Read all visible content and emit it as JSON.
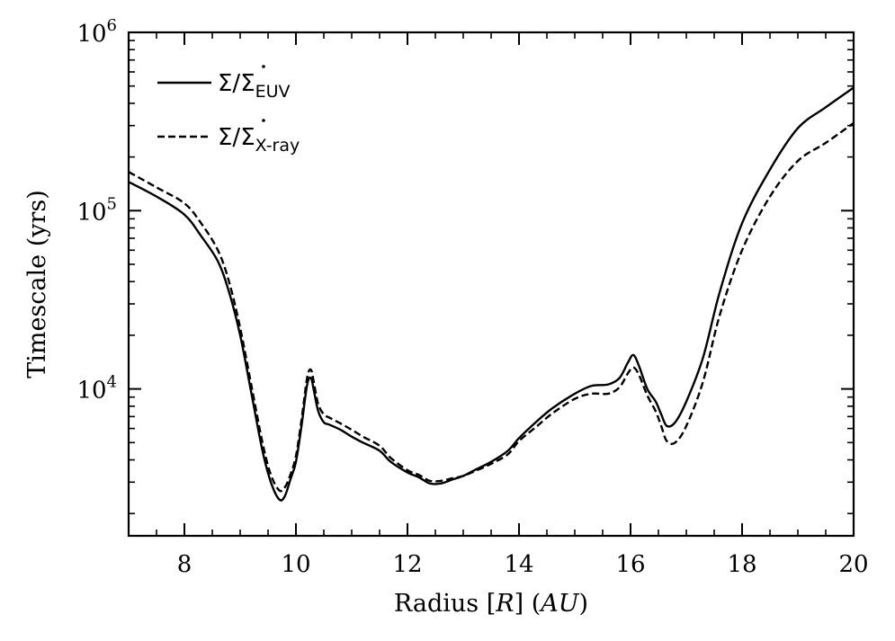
{
  "chart_data": {
    "type": "line",
    "xlabel": {
      "prefix": "Radius [",
      "symbol": "R",
      "mid": "] (",
      "unit": "AU",
      "suffix": ")"
    },
    "ylabel": "Timescale (yrs)",
    "xlim": [
      7,
      20
    ],
    "ylim": [
      1500,
      1000000
    ],
    "yscale": "log",
    "xticks": [
      8,
      10,
      12,
      14,
      16,
      18,
      20
    ],
    "yticks": [
      {
        "base": "10",
        "exp": "4",
        "value": 10000
      },
      {
        "base": "10",
        "exp": "5",
        "value": 100000
      },
      {
        "base": "10",
        "exp": "6",
        "value": 1000000
      }
    ],
    "legend_position": "top-left",
    "series": [
      {
        "name": "Σ/Σ̇_EUV",
        "label_main": "Σ/Σ",
        "label_sub": "EUV",
        "style": "solid",
        "color": "#000000",
        "x": [
          7.0,
          7.5,
          8.0,
          8.3,
          8.6,
          8.8,
          9.0,
          9.2,
          9.4,
          9.55,
          9.7,
          9.8,
          9.9,
          10.0,
          10.1,
          10.2,
          10.27,
          10.33,
          10.4,
          10.5,
          10.6,
          10.8,
          11.0,
          11.2,
          11.5,
          11.7,
          12.0,
          12.2,
          12.4,
          12.6,
          12.8,
          13.0,
          13.2,
          13.5,
          13.8,
          14.0,
          14.3,
          14.6,
          15.0,
          15.3,
          15.6,
          15.8,
          15.95,
          16.05,
          16.15,
          16.3,
          16.45,
          16.55,
          16.65,
          16.8,
          17.0,
          17.3,
          17.6,
          18.0,
          18.5,
          19.0,
          19.5,
          20.0
        ],
        "y": [
          145000,
          120000,
          95000,
          72000,
          52000,
          35000,
          20000,
          9500,
          4500,
          3000,
          2400,
          2500,
          3100,
          3900,
          6200,
          10500,
          11500,
          9500,
          7500,
          6500,
          6300,
          5900,
          5400,
          5000,
          4500,
          3900,
          3400,
          3200,
          2950,
          2950,
          3100,
          3250,
          3500,
          3900,
          4500,
          5300,
          6500,
          7800,
          9400,
          10400,
          10600,
          11500,
          14000,
          15500,
          13500,
          10000,
          8500,
          7200,
          6200,
          6500,
          8500,
          15000,
          35000,
          85000,
          170000,
          290000,
          380000,
          490000
        ]
      },
      {
        "name": "Σ/Σ̇_X-ray",
        "label_main": "Σ/Σ",
        "label_sub": "X-ray",
        "style": "dashed",
        "color": "#000000",
        "x": [
          7.0,
          7.5,
          8.0,
          8.3,
          8.6,
          8.8,
          9.0,
          9.2,
          9.4,
          9.55,
          9.7,
          9.8,
          9.9,
          10.0,
          10.1,
          10.2,
          10.27,
          10.33,
          10.4,
          10.5,
          10.6,
          10.8,
          11.0,
          11.2,
          11.5,
          11.7,
          12.0,
          12.2,
          12.4,
          12.6,
          12.8,
          13.0,
          13.2,
          13.5,
          13.8,
          14.0,
          14.3,
          14.6,
          15.0,
          15.3,
          15.6,
          15.8,
          15.95,
          16.05,
          16.15,
          16.3,
          16.45,
          16.55,
          16.65,
          16.8,
          17.0,
          17.3,
          17.6,
          18.0,
          18.5,
          19.0,
          19.5,
          20.0
        ],
        "y": [
          165000,
          135000,
          110000,
          85000,
          60000,
          40000,
          22000,
          10500,
          5000,
          3300,
          2700,
          2800,
          3300,
          4200,
          6700,
          11500,
          12800,
          10500,
          8200,
          7200,
          6900,
          6400,
          5900,
          5400,
          4800,
          4100,
          3500,
          3300,
          3050,
          3050,
          3150,
          3250,
          3450,
          3800,
          4300,
          5100,
          6100,
          7300,
          8800,
          9400,
          9400,
          10200,
          12200,
          13200,
          12000,
          9200,
          7500,
          6200,
          5100,
          5000,
          6200,
          11000,
          26000,
          60000,
          120000,
          190000,
          240000,
          310000
        ]
      }
    ]
  }
}
